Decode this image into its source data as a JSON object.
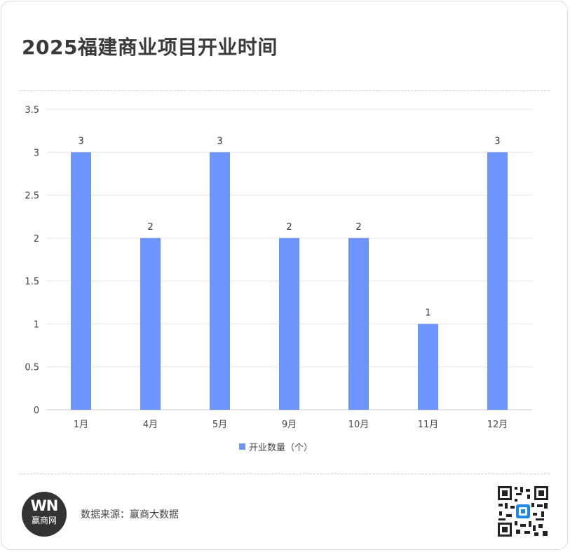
{
  "title": "2025福建商业项目开业时间",
  "source": "数据来源：赢商大数据",
  "logo": {
    "mark": "WN",
    "name": "赢商网"
  },
  "qr_icon": "qr-code-icon",
  "colors": {
    "bar": "#6e95fd",
    "grid": "#e6e6e6",
    "text": "#444444"
  },
  "chart_data": {
    "type": "bar",
    "categories": [
      "1月",
      "4月",
      "5月",
      "9月",
      "10月",
      "11月",
      "12月"
    ],
    "series": [
      {
        "name": "开业数量（个）",
        "values": [
          3,
          2,
          3,
          2,
          2,
          1,
          3
        ]
      }
    ],
    "ylim": [
      0,
      3.5
    ],
    "yticks": [
      "0",
      "0.5",
      "1",
      "1.5",
      "2",
      "2.5",
      "3",
      "3.5"
    ],
    "grid": true,
    "legend": "bottom-center",
    "data_labels": true
  }
}
